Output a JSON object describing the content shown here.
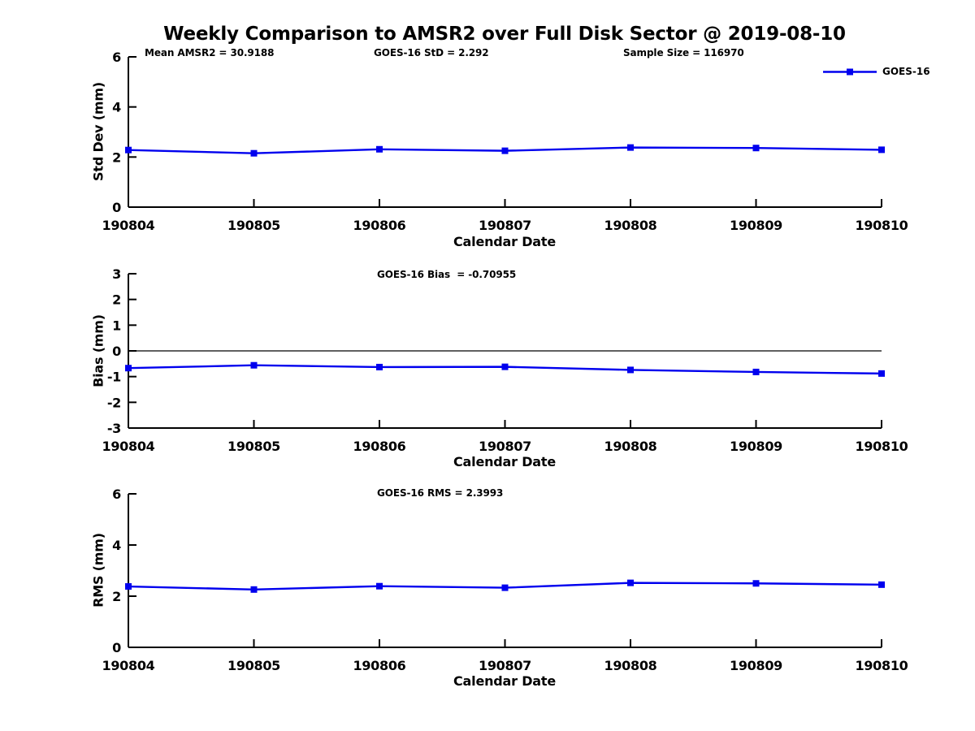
{
  "figure": {
    "title": "Weekly Comparison to AMSR2 over Full Disk Sector @ 2019-08-10",
    "background": "#ffffff",
    "text_color": "#000000"
  },
  "legend": {
    "label": "GOES-16",
    "color": "#0000ee",
    "marker": "square",
    "position": "top-right"
  },
  "chart_data": [
    {
      "type": "line",
      "name": "std-dev",
      "annotations": [
        "Mean AMSR2 = 30.9188",
        "GOES-16 StD = 2.292",
        "Sample Size = 116970"
      ],
      "x": [
        "190804",
        "190805",
        "190806",
        "190807",
        "190808",
        "190809",
        "190810"
      ],
      "series": [
        {
          "name": "GOES-16",
          "color": "#0000ee",
          "marker": "square",
          "values": [
            2.28,
            2.15,
            2.31,
            2.25,
            2.38,
            2.36,
            2.29
          ]
        }
      ],
      "xlabel": "Calendar Date",
      "ylabel": "Std Dev (mm)",
      "ylim": [
        0,
        6
      ],
      "yticks": [
        0,
        2,
        4,
        6
      ],
      "zero_line": false,
      "grid": false
    },
    {
      "type": "line",
      "name": "bias",
      "annotations": [
        "GOES-16 Bias  = -0.70955"
      ],
      "x": [
        "190804",
        "190805",
        "190806",
        "190807",
        "190808",
        "190809",
        "190810"
      ],
      "series": [
        {
          "name": "GOES-16",
          "color": "#0000ee",
          "marker": "square",
          "values": [
            -0.67,
            -0.56,
            -0.63,
            -0.62,
            -0.74,
            -0.82,
            -0.88
          ]
        }
      ],
      "xlabel": "Calendar Date",
      "ylabel": "Bias (mm)",
      "ylim": [
        -3,
        3
      ],
      "yticks": [
        -3,
        -2,
        -1,
        0,
        1,
        2,
        3
      ],
      "zero_line": true,
      "grid": false
    },
    {
      "type": "line",
      "name": "rms",
      "annotations": [
        "GOES-16 RMS = 2.3993"
      ],
      "x": [
        "190804",
        "190805",
        "190806",
        "190807",
        "190808",
        "190809",
        "190810"
      ],
      "series": [
        {
          "name": "GOES-16",
          "color": "#0000ee",
          "marker": "square",
          "values": [
            2.38,
            2.26,
            2.39,
            2.33,
            2.52,
            2.5,
            2.45
          ]
        }
      ],
      "xlabel": "Calendar Date",
      "ylabel": "RMS (mm)",
      "ylim": [
        0,
        6
      ],
      "yticks": [
        0,
        2,
        4,
        6
      ],
      "zero_line": false,
      "grid": false
    }
  ]
}
